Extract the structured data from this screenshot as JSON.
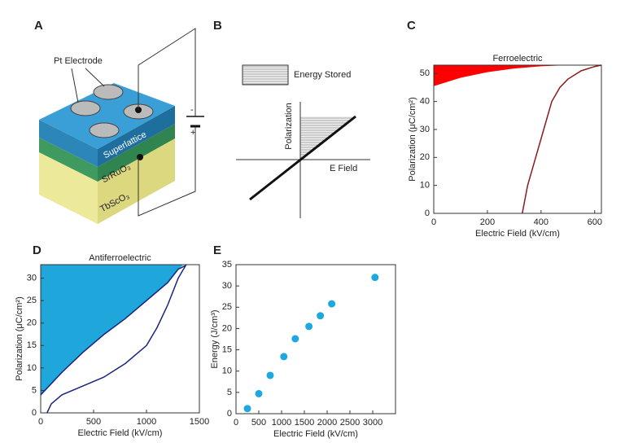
{
  "panel_labels": [
    "A",
    "B"
  ],
  "diagram_a": {
    "electrode_label": "Pt Electrode",
    "layers": [
      "Superlattice",
      "SrRuO₃",
      "TbScO₃"
    ],
    "battery_signs": [
      "-",
      "+"
    ]
  },
  "diagram_b": {
    "legend": "Energy Stored",
    "y_label": "Polarization",
    "x_label": "E Field"
  },
  "chart_data": [
    {
      "type": "line",
      "panel": "C",
      "title": "Ferroelectric",
      "x_label": "Electric Field (kV/cm)",
      "y_label": "Polarization (μC/cm²)",
      "xlim": [
        0,
        625
      ],
      "ylim": [
        0,
        53
      ],
      "xticks": [
        0,
        200,
        400,
        600
      ],
      "yticks": [
        0,
        10,
        20,
        30,
        40,
        50
      ],
      "series": [
        {
          "color": "#ff0000",
          "fill": true,
          "x": [
            0,
            625,
            500,
            400,
            300,
            200,
            100,
            0
          ],
          "values": [
            53,
            53,
            53,
            52.6,
            51.8,
            50.5,
            48.5,
            45.5
          ]
        },
        {
          "color": "#8b1a1a",
          "fill": false,
          "x": [
            330,
            350,
            380,
            410,
            440,
            470,
            500,
            550,
            600,
            625
          ],
          "values": [
            0,
            10,
            20,
            30,
            40,
            45,
            48,
            51,
            52.5,
            53
          ]
        }
      ]
    },
    {
      "type": "line",
      "panel": "D",
      "title": "Antiferroelectric",
      "x_label": "Electric Field (kV/cm)",
      "y_label": "Polarization (μC/cm²)",
      "xlim": [
        0,
        1500
      ],
      "ylim": [
        0,
        33
      ],
      "xticks": [
        0,
        500,
        1000,
        1500
      ],
      "yticks": [
        0,
        5,
        10,
        15,
        20,
        25,
        30
      ],
      "series": [
        {
          "color": "#1fa7dc",
          "fill": true,
          "x": [
            0,
            1350,
            1300,
            1200,
            1000,
            800,
            600,
            400,
            200,
            0
          ],
          "values": [
            33,
            33,
            32,
            29,
            25,
            21,
            17.5,
            13.5,
            9,
            4
          ]
        },
        {
          "color": "#1a237e",
          "fill": false,
          "x": [
            0,
            200,
            400,
            600,
            800,
            1000,
            1200,
            1300,
            1370,
            1300,
            1200,
            1100,
            1000,
            800,
            600,
            400,
            200,
            100,
            60
          ],
          "values": [
            4,
            9,
            13.5,
            17.5,
            21,
            25,
            29,
            32,
            32.8,
            30,
            24,
            19,
            15,
            11,
            8,
            6,
            4,
            2,
            0
          ]
        }
      ]
    },
    {
      "type": "scatter",
      "panel": "E",
      "x_label": "Electric Field (kV/cm)",
      "y_label": "Energy (J/cm³)",
      "xlim": [
        0,
        3500
      ],
      "ylim": [
        0,
        35
      ],
      "xticks": [
        0,
        500,
        1000,
        1500,
        2000,
        2500,
        3000
      ],
      "yticks": [
        0,
        5,
        10,
        15,
        20,
        25,
        30,
        35
      ],
      "color": "#1ea8e0",
      "x": [
        250,
        500,
        750,
        1050,
        1300,
        1600,
        1850,
        2100,
        3050
      ],
      "values": [
        1.2,
        4.7,
        9,
        13.4,
        17.6,
        20.5,
        23,
        25.8,
        32
      ]
    }
  ]
}
